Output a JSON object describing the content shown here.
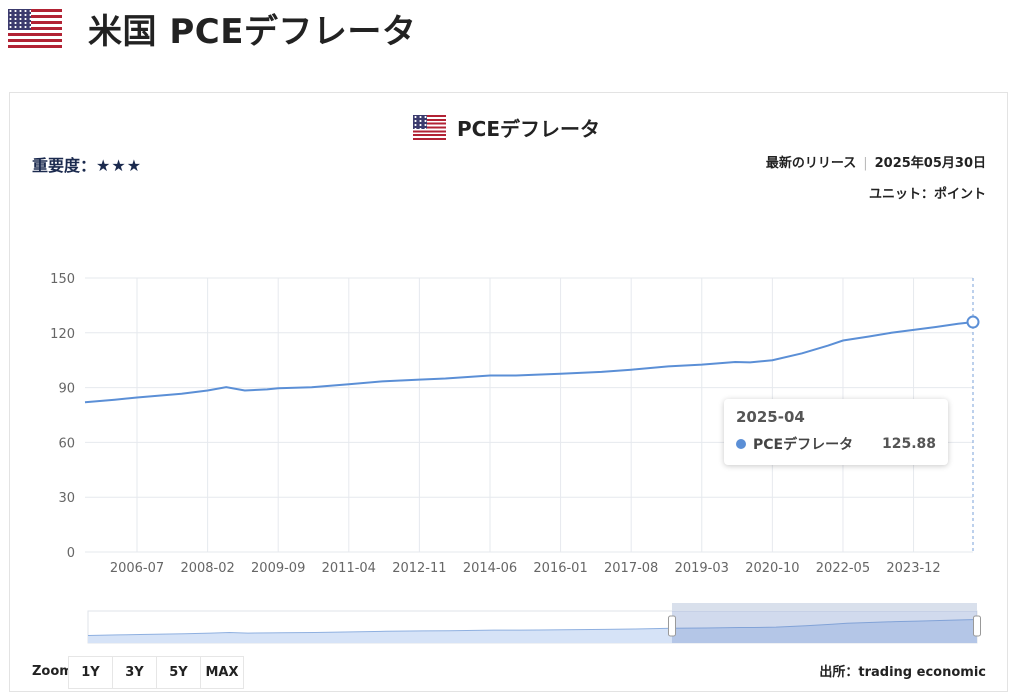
{
  "page": {
    "title": "米国 PCEデフレータ"
  },
  "card": {
    "title": "PCEデフレータ",
    "importance_label": "重要度：",
    "importance_stars": "★★★",
    "release_label": "最新のリリース",
    "release_date": "2025年05月30日",
    "unit_text": "ユニット：ポイント"
  },
  "tooltip": {
    "date": "2025-04",
    "series": "PCEデフレータ",
    "value": "125.88"
  },
  "zoom": {
    "label": "Zoom",
    "buttons": [
      "1Y",
      "3Y",
      "5Y",
      "MAX"
    ]
  },
  "source": "出所：trading economic",
  "colors": {
    "series": "#5b8fd6",
    "grid": "#e6e9ee",
    "navigator_fill": "#d6e3f7",
    "navigator_mask": "rgba(102,133,194,0.3)"
  },
  "chart_data": {
    "type": "line",
    "series_name": "PCEデフレータ",
    "x_ticks": [
      "2006-07",
      "2008-02",
      "2009-09",
      "2011-04",
      "2012-11",
      "2014-06",
      "2016-01",
      "2017-08",
      "2019-03",
      "2020-10",
      "2022-05",
      "2023-12"
    ],
    "y_ticks": [
      0,
      30,
      60,
      90,
      120,
      150
    ],
    "ylim": [
      0,
      150
    ],
    "xlim": [
      "2005-05",
      "2025-04"
    ],
    "grid": true,
    "points": [
      [
        "2005-05",
        82.0
      ],
      [
        "2006-01",
        83.4
      ],
      [
        "2006-07",
        84.6
      ],
      [
        "2007-01",
        85.6
      ],
      [
        "2007-07",
        86.6
      ],
      [
        "2008-02",
        88.4
      ],
      [
        "2008-07",
        90.2
      ],
      [
        "2008-12",
        88.4
      ],
      [
        "2009-06",
        89.0
      ],
      [
        "2009-09",
        89.6
      ],
      [
        "2010-06",
        90.2
      ],
      [
        "2011-04",
        91.8
      ],
      [
        "2012-01",
        93.4
      ],
      [
        "2012-11",
        94.4
      ],
      [
        "2013-06",
        95.0
      ],
      [
        "2014-06",
        96.6
      ],
      [
        "2015-01",
        96.6
      ],
      [
        "2015-06",
        97.0
      ],
      [
        "2016-01",
        97.6
      ],
      [
        "2016-12",
        98.6
      ],
      [
        "2017-08",
        99.8
      ],
      [
        "2018-06",
        101.6
      ],
      [
        "2019-03",
        102.6
      ],
      [
        "2019-12",
        104.0
      ],
      [
        "2020-04",
        103.8
      ],
      [
        "2020-10",
        105.0
      ],
      [
        "2021-06",
        108.8
      ],
      [
        "2022-01",
        113.0
      ],
      [
        "2022-05",
        115.8
      ],
      [
        "2022-12",
        118.0
      ],
      [
        "2023-06",
        120.0
      ],
      [
        "2023-12",
        121.6
      ],
      [
        "2024-06",
        123.2
      ],
      [
        "2024-12",
        124.9
      ],
      [
        "2025-04",
        125.88
      ]
    ],
    "highlight": {
      "date": "2025-04",
      "value": 125.88
    },
    "navigator_range": [
      "2018-06",
      "2025-04"
    ]
  }
}
